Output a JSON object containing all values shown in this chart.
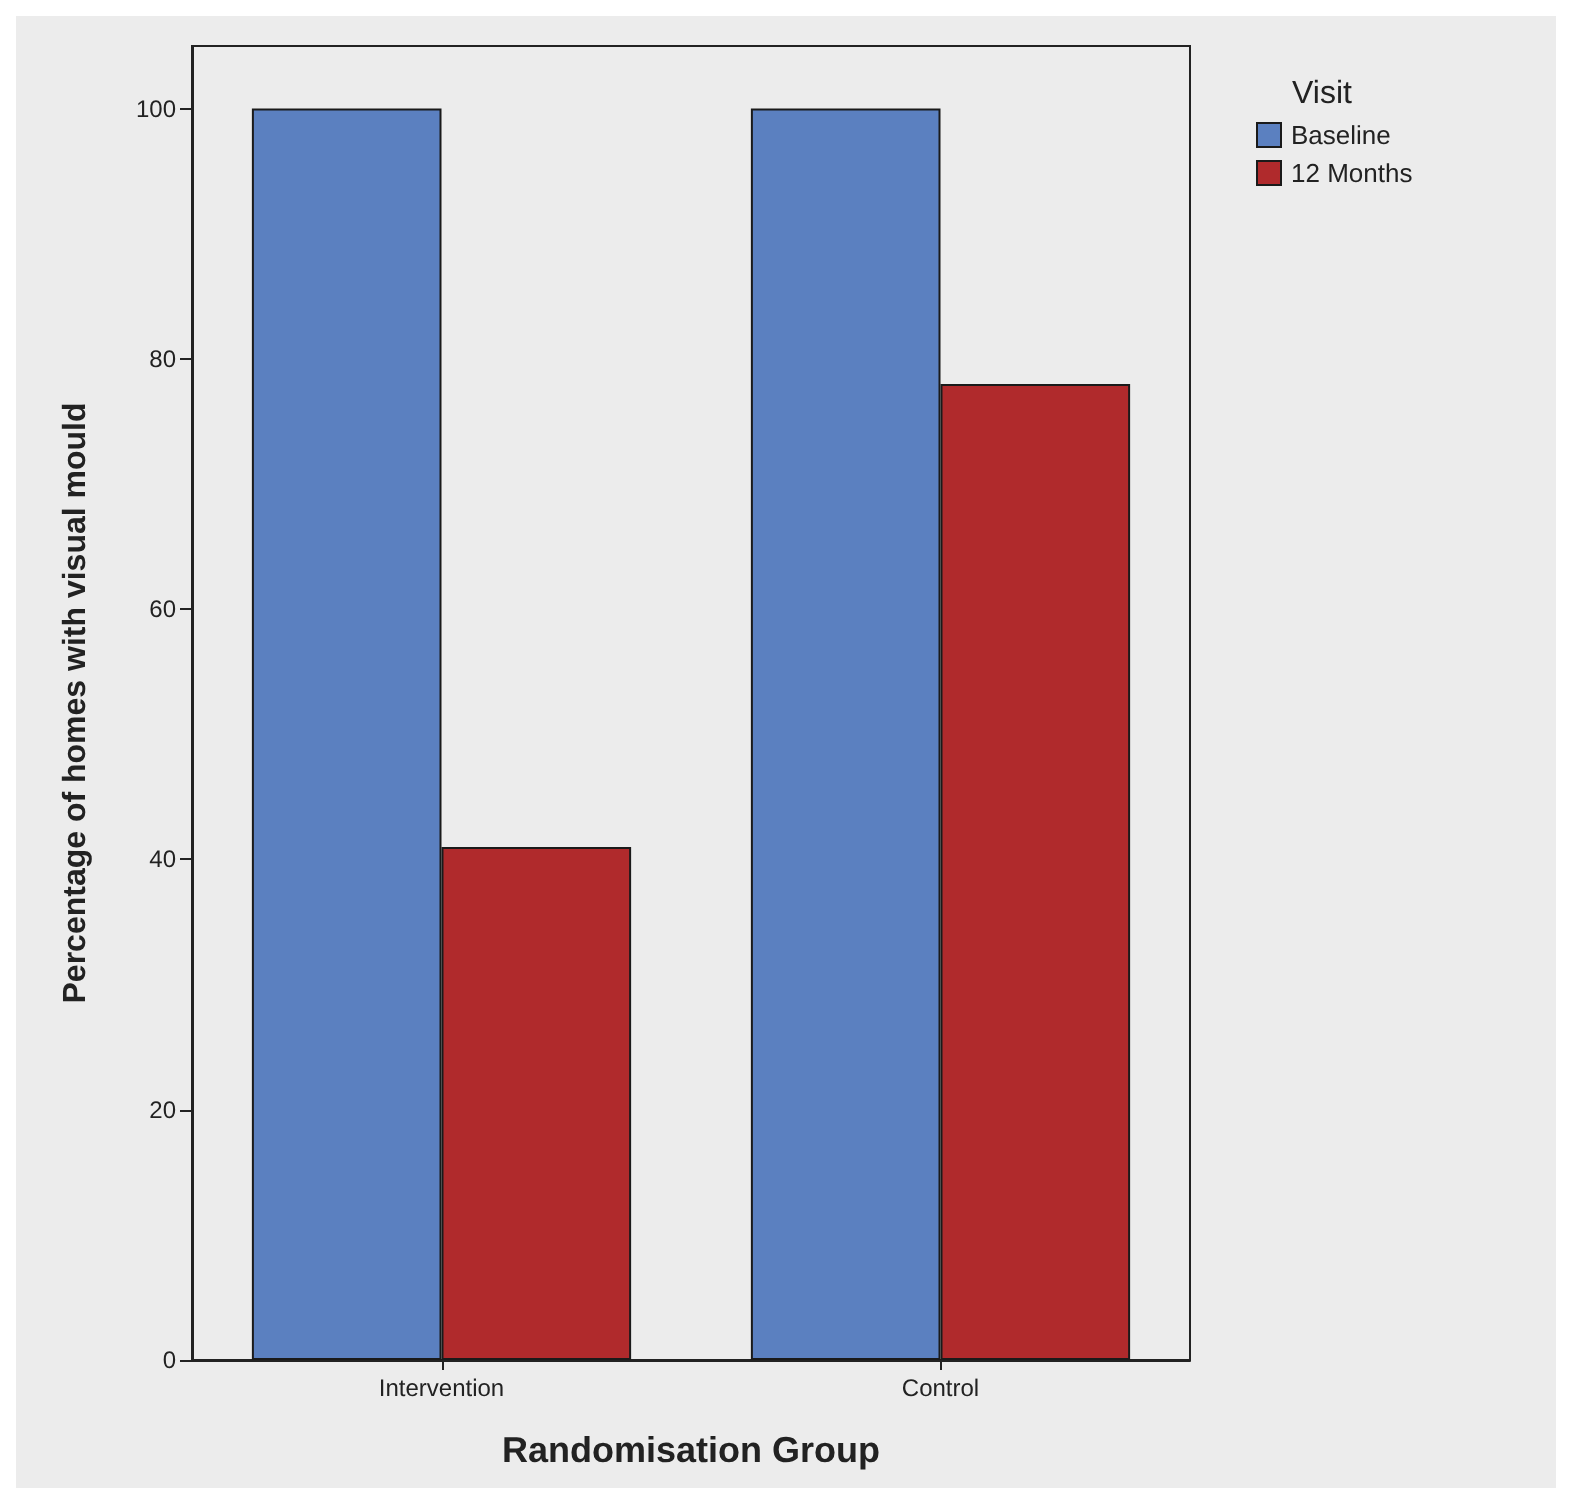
{
  "chart_data": {
    "type": "bar",
    "xlabel": "Randomisation Group",
    "ylabel": "Percentage of homes with visual mould",
    "legend_title": "Visit",
    "categories": [
      "Intervention",
      "Control"
    ],
    "series": [
      {
        "name": "Baseline",
        "color": "#5b80c0",
        "values": [
          100,
          100
        ]
      },
      {
        "name": "12 Months",
        "color": "#b02a2c",
        "values": [
          41,
          78
        ]
      }
    ],
    "ylim": [
      0,
      105
    ],
    "yticks": [
      0,
      20,
      40,
      60,
      80,
      100
    ],
    "grid": false,
    "legend": "top right"
  }
}
